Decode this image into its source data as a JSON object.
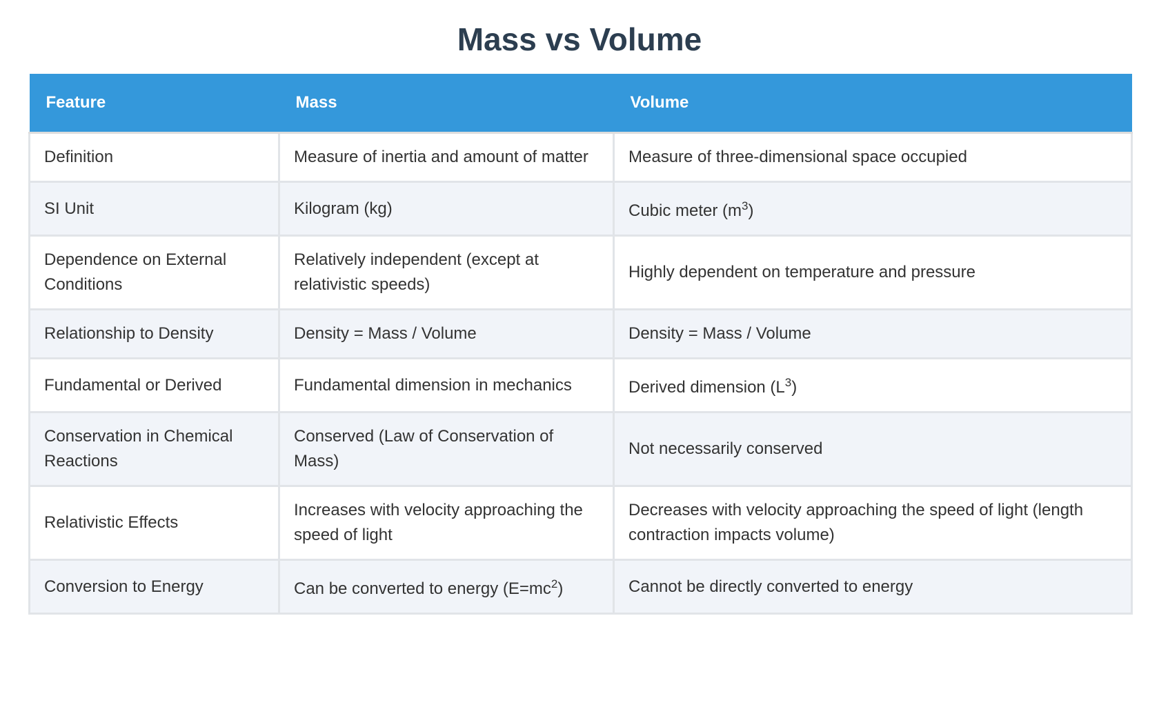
{
  "title": "Mass vs Volume",
  "table": {
    "header": [
      "Feature",
      "Mass",
      "Volume"
    ],
    "rows": [
      [
        "Definition",
        "Measure of inertia and amount of matter",
        "Measure of three-dimensional space occupied"
      ],
      [
        "SI Unit",
        "Kilogram (kg)",
        {
          "base": "Cubic meter (m",
          "sup": "3",
          "tail": ")"
        }
      ],
      [
        "Dependence on External Conditions",
        "Relatively independent (except at relativistic speeds)",
        "Highly dependent on temperature and pressure"
      ],
      [
        "Relationship to Density",
        "Density = Mass / Volume",
        "Density = Mass / Volume"
      ],
      [
        "Fundamental or Derived",
        "Fundamental dimension in mechanics",
        {
          "base": "Derived dimension (L",
          "sup": "3",
          "tail": ")"
        }
      ],
      [
        "Conservation in Chemical Reactions",
        "Conserved (Law of Conservation of Mass)",
        "Not necessarily conserved"
      ],
      [
        "Relativistic Effects",
        "Increases with velocity approaching the speed of light",
        "Decreases with velocity approaching the speed of light (length contraction impacts volume)"
      ],
      [
        "Conversion to Energy",
        {
          "base": "Can be converted to energy (E=mc",
          "sup": "2",
          "tail": ")"
        },
        "Cannot be directly converted to energy"
      ]
    ]
  }
}
